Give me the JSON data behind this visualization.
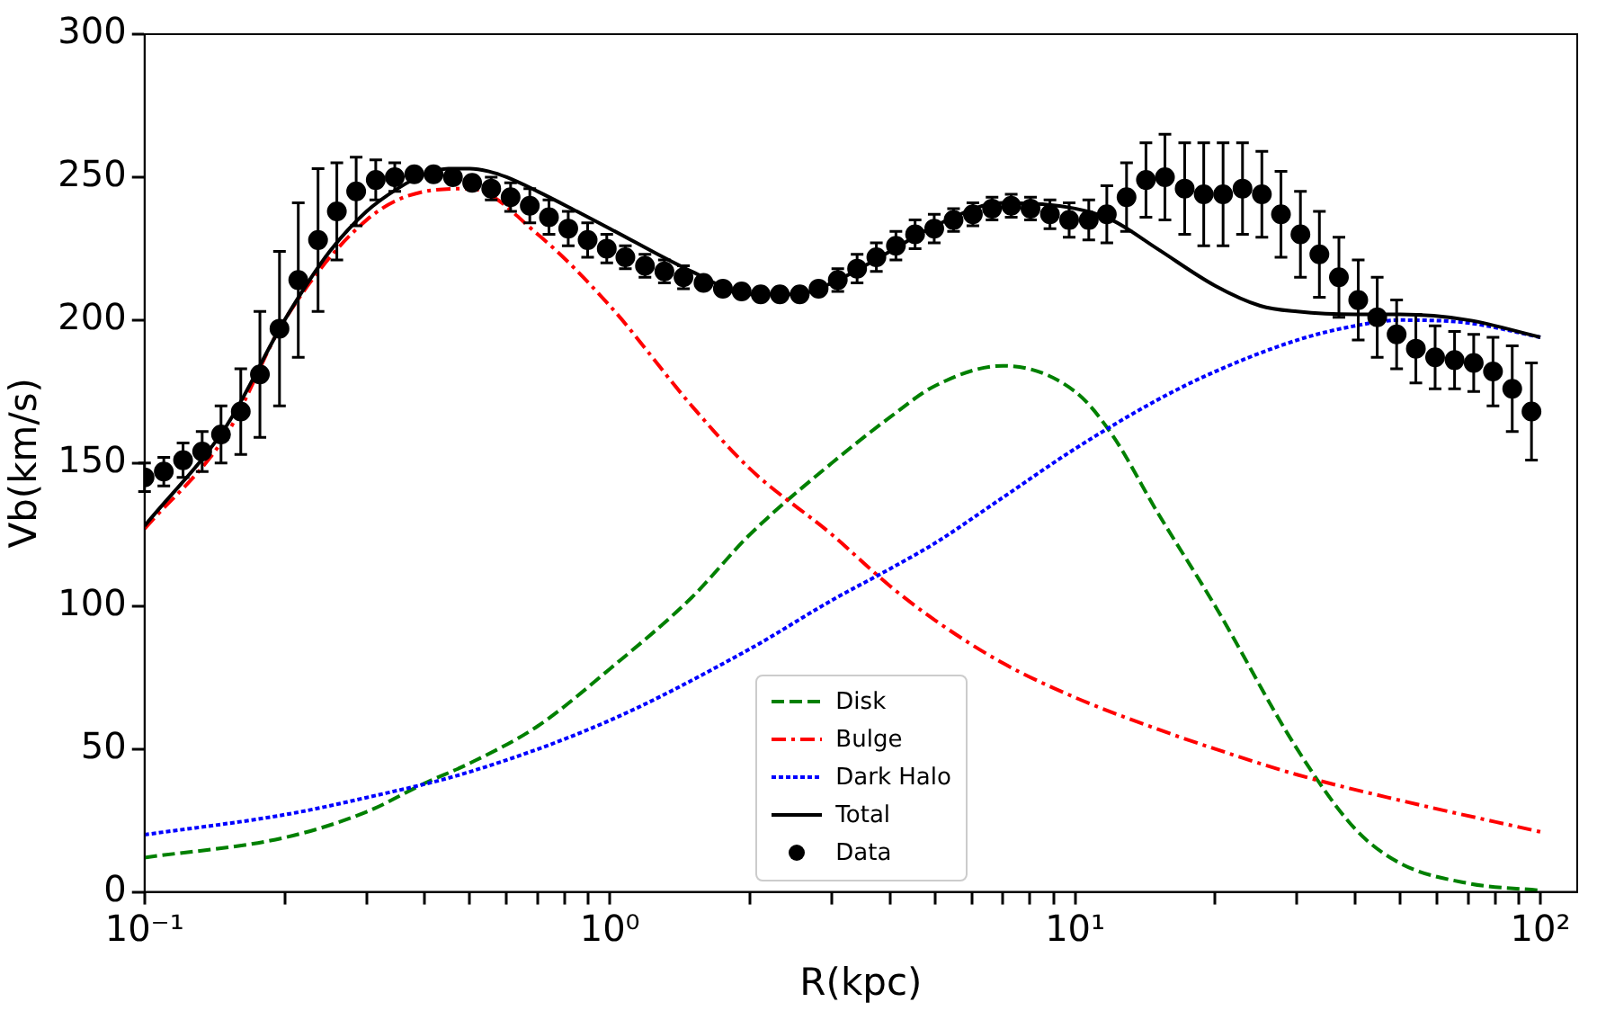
{
  "chart_data": {
    "type": "line",
    "xlabel": "R(kpc)",
    "ylabel": "Vb(km/s)",
    "log": "x",
    "xlim": [
      0.1,
      120
    ],
    "ylim": [
      0,
      300
    ],
    "xticks": [
      {
        "value": 0.1,
        "label": "10⁻¹"
      },
      {
        "value": 0.2,
        "label": null
      },
      {
        "value": 0.3,
        "label": null
      },
      {
        "value": 0.4,
        "label": null
      },
      {
        "value": 0.5,
        "label": null
      },
      {
        "value": 0.6,
        "label": null
      },
      {
        "value": 0.7,
        "label": null
      },
      {
        "value": 0.8,
        "label": null
      },
      {
        "value": 0.9,
        "label": null
      },
      {
        "value": 1,
        "label": "10⁰"
      },
      {
        "value": 2,
        "label": null
      },
      {
        "value": 3,
        "label": null
      },
      {
        "value": 4,
        "label": null
      },
      {
        "value": 5,
        "label": null
      },
      {
        "value": 6,
        "label": null
      },
      {
        "value": 7,
        "label": null
      },
      {
        "value": 8,
        "label": null
      },
      {
        "value": 9,
        "label": null
      },
      {
        "value": 10,
        "label": "10¹"
      },
      {
        "value": 20,
        "label": null
      },
      {
        "value": 30,
        "label": null
      },
      {
        "value": 40,
        "label": null
      },
      {
        "value": 50,
        "label": null
      },
      {
        "value": 60,
        "label": null
      },
      {
        "value": 70,
        "label": null
      },
      {
        "value": 80,
        "label": null
      },
      {
        "value": 90,
        "label": null
      },
      {
        "value": 100,
        "label": "10²"
      }
    ],
    "yticks": [
      0,
      50,
      100,
      150,
      200,
      250,
      300
    ],
    "grid": false,
    "legend": "bottom",
    "series": [
      {
        "name": "Disk",
        "color": "#008000",
        "line_style": "dashed",
        "marker": "none",
        "x": [
          0.1,
          0.2,
          0.3,
          0.4,
          0.5,
          0.7,
          1,
          1.5,
          2,
          3,
          4,
          5,
          7,
          10,
          12,
          15,
          20,
          30,
          40,
          50,
          70,
          100
        ],
        "values": [
          12,
          19,
          28,
          38,
          45,
          58,
          78,
          103,
          125,
          150,
          166,
          177,
          184,
          175,
          160,
          133,
          100,
          50,
          22,
          10,
          3,
          0.5
        ]
      },
      {
        "name": "Bulge",
        "color": "#ff0000",
        "line_style": "dashdot",
        "marker": "none",
        "x": [
          0.1,
          0.15,
          0.2,
          0.3,
          0.4,
          0.5,
          0.7,
          1,
          1.5,
          2,
          3,
          4,
          5,
          7,
          10,
          15,
          20,
          30,
          50,
          100
        ],
        "values": [
          127,
          160,
          200,
          235,
          245,
          246,
          230,
          205,
          170,
          148,
          125,
          107,
          95,
          80,
          68,
          57,
          50,
          41,
          32,
          21
        ]
      },
      {
        "name": "Dark Halo",
        "color": "#0000ff",
        "line_style": "dotted",
        "marker": "none",
        "x": [
          0.1,
          0.2,
          0.3,
          0.5,
          1,
          2,
          3,
          4,
          5,
          7,
          10,
          15,
          20,
          30,
          40,
          50,
          70,
          100
        ],
        "values": [
          20,
          27,
          33,
          42,
          60,
          85,
          102,
          113,
          122,
          138,
          155,
          172,
          182,
          193,
          198,
          200,
          199,
          194
        ]
      },
      {
        "name": "Total",
        "color": "#000000",
        "line_style": "solid",
        "marker": "none",
        "x": [
          0.1,
          0.15,
          0.2,
          0.25,
          0.3,
          0.35,
          0.4,
          0.45,
          0.5,
          0.55,
          0.6,
          0.7,
          0.85,
          1,
          1.5,
          2,
          2.5,
          3,
          4,
          5,
          7,
          10,
          12,
          15,
          20,
          25,
          30,
          40,
          50,
          70,
          100
        ],
        "values": [
          128,
          163,
          200,
          224,
          238,
          246,
          251,
          253,
          253,
          252,
          250,
          245,
          238,
          232,
          217,
          209,
          209,
          213,
          224,
          233,
          241,
          239,
          235,
          225,
          212,
          205,
          203,
          202,
          202,
          200,
          194
        ]
      },
      {
        "name": "Data",
        "type": "scatter",
        "color": "#000000",
        "marker": "circle",
        "x": [
          0.1,
          0.11,
          0.121,
          0.133,
          0.146,
          0.161,
          0.177,
          0.195,
          0.214,
          0.236,
          0.259,
          0.285,
          0.314,
          0.345,
          0.38,
          0.418,
          0.46,
          0.506,
          0.556,
          0.612,
          0.673,
          0.74,
          0.814,
          0.896,
          0.985,
          1.08,
          1.19,
          1.31,
          1.44,
          1.59,
          1.75,
          1.92,
          2.11,
          2.32,
          2.56,
          2.81,
          3.09,
          3.4,
          3.74,
          4.12,
          4.53,
          4.98,
          5.48,
          6.03,
          6.63,
          7.29,
          8.02,
          8.83,
          9.71,
          10.7,
          11.7,
          12.9,
          14.2,
          15.6,
          17.2,
          18.9,
          20.8,
          22.9,
          25.2,
          27.7,
          30.5,
          33.5,
          36.9,
          40.6,
          44.6,
          49.1,
          54.0,
          59.4,
          65.4,
          71.9,
          79.1,
          87.0,
          95.7
        ],
        "values": [
          145,
          147,
          151,
          154,
          160,
          168,
          181,
          197,
          214,
          228,
          238,
          245,
          249,
          250,
          251,
          251,
          250,
          248,
          246,
          243,
          240,
          236,
          232,
          228,
          225,
          222,
          219,
          217,
          215,
          213,
          211,
          210,
          209,
          209,
          209,
          211,
          214,
          218,
          222,
          226,
          230,
          232,
          235,
          237,
          239,
          240,
          239,
          237,
          235,
          235,
          237,
          243,
          249,
          250,
          246,
          244,
          244,
          246,
          244,
          237,
          230,
          223,
          215,
          207,
          201,
          195,
          190,
          187,
          186,
          185,
          182,
          176,
          168
        ],
        "errors": [
          5,
          5,
          6,
          7,
          10,
          15,
          22,
          27,
          27,
          25,
          17,
          12,
          7,
          5,
          null,
          null,
          null,
          null,
          4,
          5,
          6,
          6,
          6,
          6,
          5,
          4,
          4,
          4,
          4,
          null,
          null,
          null,
          null,
          null,
          null,
          null,
          4,
          5,
          5,
          5,
          5,
          5,
          4,
          4,
          4,
          4,
          4,
          5,
          6,
          7,
          10,
          12,
          13,
          15,
          16,
          18,
          18,
          16,
          15,
          15,
          15,
          15,
          14,
          14,
          14,
          12,
          12,
          11,
          10,
          10,
          12,
          15,
          17
        ]
      }
    ]
  }
}
